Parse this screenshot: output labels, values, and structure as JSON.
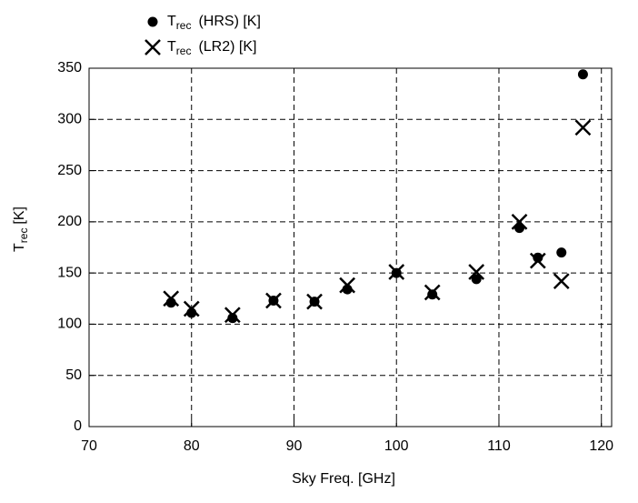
{
  "chart_data": {
    "type": "scatter",
    "x_label": "Sky Freq. [GHz]",
    "y_label": {
      "main": "T",
      "sub": "rec",
      "unit": "[K]"
    },
    "legend_prefix": {
      "main": "T",
      "sub": "rec"
    },
    "xlim": [
      70,
      121
    ],
    "xticks": [
      70,
      80,
      90,
      100,
      110,
      120
    ],
    "ylim": [
      0,
      350
    ],
    "yticks": [
      0,
      50,
      100,
      150,
      200,
      250,
      300,
      350
    ],
    "grid": true,
    "legend": "top-left",
    "series": [
      {
        "name": "(HRS) [K]",
        "marker": "dot",
        "color": "#000000",
        "x": [
          78,
          80,
          84,
          88,
          92,
          95.2,
          100,
          103.5,
          107.8,
          112,
          113.8,
          116.1,
          118.2
        ],
        "values": [
          121,
          111,
          106,
          123,
          122,
          134,
          150,
          129,
          144,
          194,
          165,
          170,
          344
        ]
      },
      {
        "name": "(LR2) [K]",
        "marker": "cross",
        "color": "#000000",
        "x": [
          78,
          80,
          84,
          88,
          92,
          95.2,
          100,
          103.5,
          107.8,
          112,
          113.8,
          116.1,
          118.2
        ],
        "values": [
          125,
          115,
          109,
          123,
          122,
          138,
          151,
          131,
          151,
          200,
          162,
          142,
          292
        ]
      }
    ]
  }
}
